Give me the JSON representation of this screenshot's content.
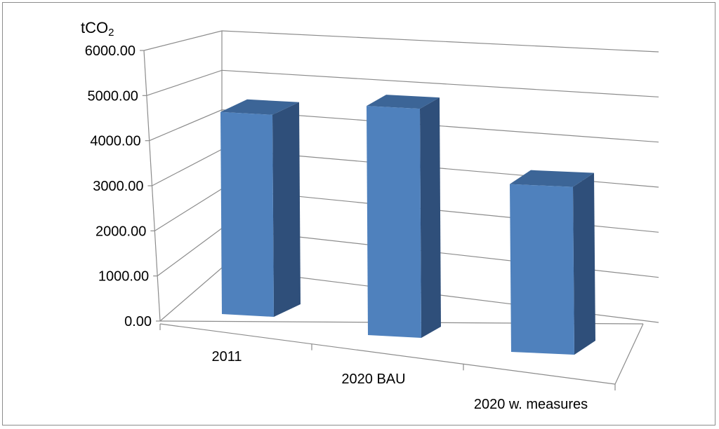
{
  "chart_data": {
    "type": "bar",
    "ylabel": "tCO2",
    "ylabel_main": "tCO",
    "ylabel_sub": "2",
    "categories": [
      "2011",
      "2020 BAU",
      "2020 w. measures"
    ],
    "values": [
      4480,
      5080,
      3720
    ],
    "ylim": [
      0,
      6000
    ],
    "y_ticks": [
      "0.00",
      "1000.00",
      "2000.00",
      "3000.00",
      "4000.00",
      "5000.00",
      "6000.00"
    ],
    "grid": true,
    "legend": "none",
    "colors": {
      "bar_front": "#4f81bd",
      "bar_side": "#2f4f7a",
      "bar_top": "#3c6597",
      "grid": "#8c8c8c"
    }
  }
}
